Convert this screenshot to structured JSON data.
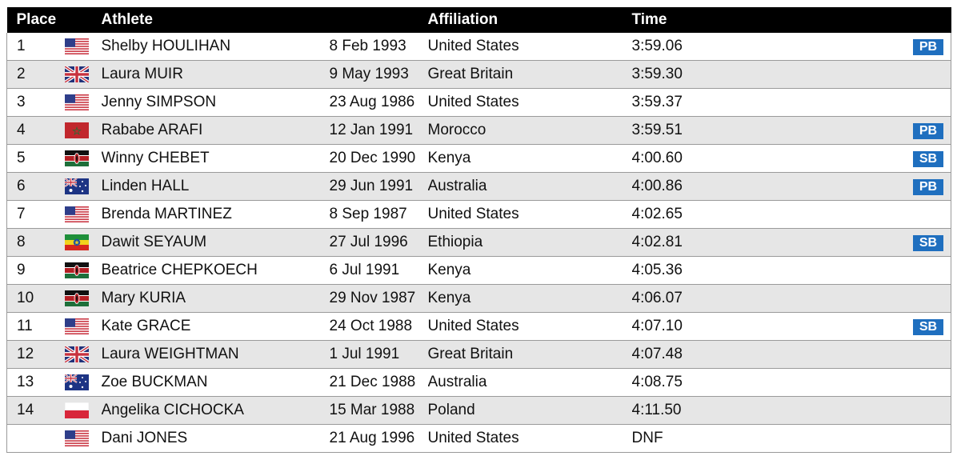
{
  "headers": {
    "place": "Place",
    "athlete": "Athlete",
    "affiliation": "Affiliation",
    "time": "Time"
  },
  "colors": {
    "header_bg": "#000000",
    "alt_row_bg": "#e6e6e6",
    "badge_bg": "#1f6fbf"
  },
  "rows": [
    {
      "place": "1",
      "flag": "usa-flag-icon",
      "athlete": "Shelby HOULIHAN",
      "dob": "8 Feb 1993",
      "affiliation": "United States",
      "time": "3:59.06",
      "badge": "PB"
    },
    {
      "place": "2",
      "flag": "gbr-flag-icon",
      "athlete": "Laura MUIR",
      "dob": "9 May 1993",
      "affiliation": "Great Britain",
      "time": "3:59.30",
      "badge": ""
    },
    {
      "place": "3",
      "flag": "usa-flag-icon",
      "athlete": "Jenny SIMPSON",
      "dob": "23 Aug 1986",
      "affiliation": "United States",
      "time": "3:59.37",
      "badge": ""
    },
    {
      "place": "4",
      "flag": "morocco-flag-icon",
      "athlete": "Rababe ARAFI",
      "dob": "12 Jan 1991",
      "affiliation": "Morocco",
      "time": "3:59.51",
      "badge": "PB"
    },
    {
      "place": "5",
      "flag": "kenya-flag-icon",
      "athlete": "Winny CHEBET",
      "dob": "20 Dec 1990",
      "affiliation": "Kenya",
      "time": "4:00.60",
      "badge": "SB"
    },
    {
      "place": "6",
      "flag": "australia-flag-icon",
      "athlete": "Linden HALL",
      "dob": "29 Jun 1991",
      "affiliation": "Australia",
      "time": "4:00.86",
      "badge": "PB"
    },
    {
      "place": "7",
      "flag": "usa-flag-icon",
      "athlete": "Brenda MARTINEZ",
      "dob": "8 Sep 1987",
      "affiliation": "United States",
      "time": "4:02.65",
      "badge": ""
    },
    {
      "place": "8",
      "flag": "ethiopia-flag-icon",
      "athlete": "Dawit SEYAUM",
      "dob": "27 Jul 1996",
      "affiliation": "Ethiopia",
      "time": "4:02.81",
      "badge": "SB"
    },
    {
      "place": "9",
      "flag": "kenya-flag-icon",
      "athlete": "Beatrice CHEPKOECH",
      "dob": "6 Jul 1991",
      "affiliation": "Kenya",
      "time": "4:05.36",
      "badge": ""
    },
    {
      "place": "10",
      "flag": "kenya-flag-icon",
      "athlete": "Mary KURIA",
      "dob": "29 Nov 1987",
      "affiliation": "Kenya",
      "time": "4:06.07",
      "badge": ""
    },
    {
      "place": "11",
      "flag": "usa-flag-icon",
      "athlete": "Kate GRACE",
      "dob": "24 Oct 1988",
      "affiliation": "United States",
      "time": "4:07.10",
      "badge": "SB"
    },
    {
      "place": "12",
      "flag": "gbr-flag-icon",
      "athlete": "Laura WEIGHTMAN",
      "dob": "1 Jul 1991",
      "affiliation": "Great Britain",
      "time": "4:07.48",
      "badge": ""
    },
    {
      "place": "13",
      "flag": "australia-flag-icon",
      "athlete": "Zoe BUCKMAN",
      "dob": "21 Dec 1988",
      "affiliation": "Australia",
      "time": "4:08.75",
      "badge": ""
    },
    {
      "place": "14",
      "flag": "poland-flag-icon",
      "athlete": "Angelika CICHOCKA",
      "dob": "15 Mar 1988",
      "affiliation": "Poland",
      "time": "4:11.50",
      "badge": ""
    },
    {
      "place": "",
      "flag": "usa-flag-icon",
      "athlete": "Dani JONES",
      "dob": "21 Aug 1996",
      "affiliation": "United States",
      "time": "DNF",
      "badge": ""
    }
  ]
}
